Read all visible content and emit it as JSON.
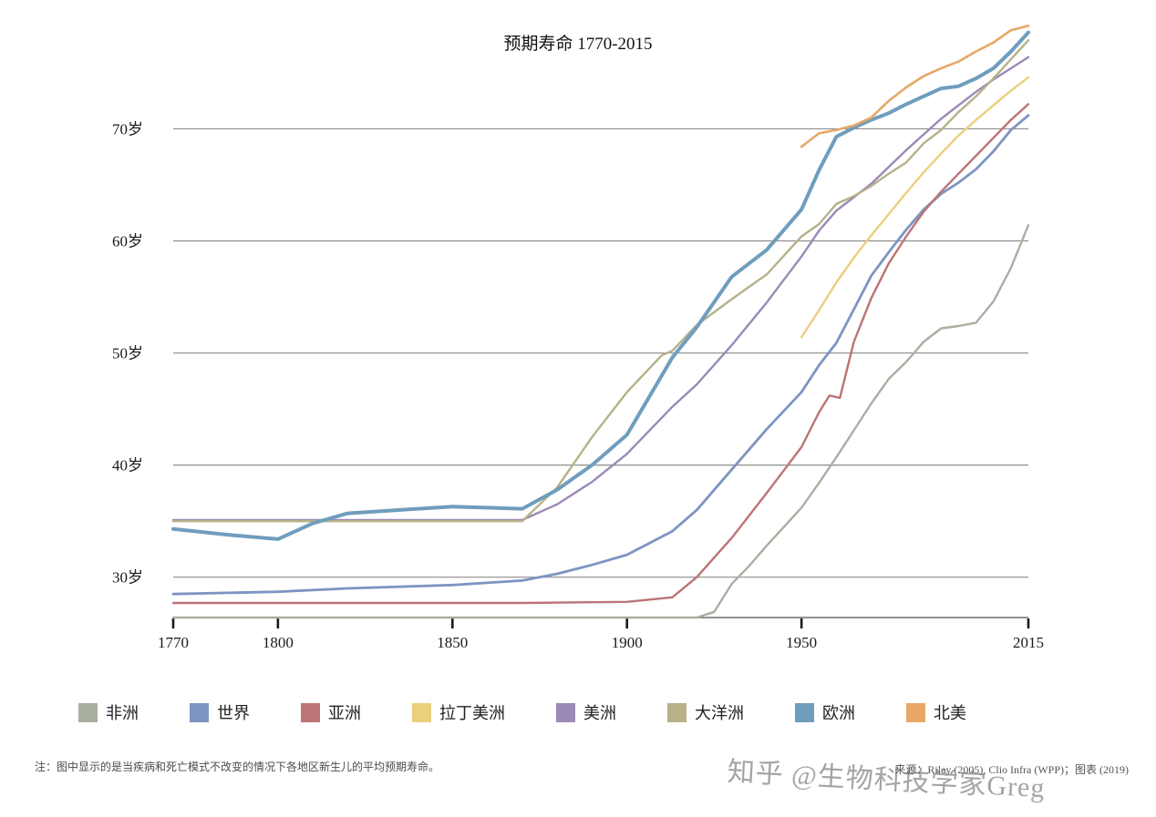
{
  "title": "预期寿命 1770-2015",
  "footnote": "注：图中显示的是当疾病和死亡模式不改变的情况下各地区新生儿的平均预期寿命。",
  "source": "来源：Riley (2005), Clio Infra (WPP)；图表 (2019)",
  "watermark": "知乎 @生物科技学家Greg",
  "chart_data": {
    "type": "line",
    "title": "预期寿命 1770-2015",
    "xlabel": "",
    "ylabel": "岁",
    "xlim": [
      1770,
      2015
    ],
    "ylim": [
      26.4,
      79.3
    ],
    "grid": "horizontal",
    "legend_position": "bottom",
    "xticks": [
      1770,
      1800,
      1850,
      1900,
      1950,
      2015
    ],
    "yticks": [
      {
        "value": 30,
        "label": "30岁"
      },
      {
        "value": 40,
        "label": "40岁"
      },
      {
        "value": 50,
        "label": "50岁"
      },
      {
        "value": 60,
        "label": "60岁"
      },
      {
        "value": 70,
        "label": "70岁"
      }
    ],
    "series": [
      {
        "key": "africa",
        "name": "非洲",
        "color": "#a7b0a0",
        "width": 2.4,
        "points": [
          [
            1770,
            26.4
          ],
          [
            1800,
            26.4
          ],
          [
            1850,
            26.4
          ],
          [
            1870,
            26.4
          ],
          [
            1900,
            26.4
          ],
          [
            1913,
            26.4
          ],
          [
            1920,
            26.4
          ],
          [
            1925,
            26.9
          ],
          [
            1930,
            29.4
          ],
          [
            1935,
            31.0
          ],
          [
            1940,
            32.8
          ],
          [
            1945,
            34.5
          ],
          [
            1950,
            36.2
          ],
          [
            1955,
            38.4
          ],
          [
            1960,
            40.7
          ],
          [
            1965,
            43.1
          ],
          [
            1970,
            45.5
          ],
          [
            1975,
            47.7
          ],
          [
            1980,
            49.2
          ],
          [
            1985,
            51.0
          ],
          [
            1990,
            52.2
          ],
          [
            1995,
            52.4
          ],
          [
            2000,
            52.7
          ],
          [
            2005,
            54.6
          ],
          [
            2010,
            57.6
          ],
          [
            2015,
            61.4
          ]
        ]
      },
      {
        "key": "world",
        "name": "世界",
        "color": "#7d95c1",
        "width": 2.8,
        "points": [
          [
            1770,
            28.5
          ],
          [
            1800,
            28.7
          ],
          [
            1820,
            29.0
          ],
          [
            1850,
            29.3
          ],
          [
            1870,
            29.7
          ],
          [
            1880,
            30.3
          ],
          [
            1890,
            31.1
          ],
          [
            1900,
            32.0
          ],
          [
            1913,
            34.1
          ],
          [
            1920,
            36.0
          ],
          [
            1930,
            39.6
          ],
          [
            1940,
            43.2
          ],
          [
            1950,
            46.5
          ],
          [
            1955,
            48.9
          ],
          [
            1960,
            50.9
          ],
          [
            1965,
            53.9
          ],
          [
            1970,
            56.9
          ],
          [
            1975,
            59.0
          ],
          [
            1980,
            61.0
          ],
          [
            1985,
            62.8
          ],
          [
            1990,
            64.2
          ],
          [
            1995,
            65.2
          ],
          [
            2000,
            66.4
          ],
          [
            2005,
            68.0
          ],
          [
            2010,
            69.9
          ],
          [
            2015,
            71.2
          ]
        ]
      },
      {
        "key": "asia",
        "name": "亚洲",
        "color": "#bc7476",
        "width": 2.4,
        "points": [
          [
            1770,
            27.7
          ],
          [
            1800,
            27.7
          ],
          [
            1850,
            27.7
          ],
          [
            1870,
            27.7
          ],
          [
            1900,
            27.8
          ],
          [
            1913,
            28.2
          ],
          [
            1920,
            30.0
          ],
          [
            1930,
            33.5
          ],
          [
            1940,
            37.5
          ],
          [
            1950,
            41.6
          ],
          [
            1955,
            44.7
          ],
          [
            1958,
            46.2
          ],
          [
            1961,
            46.0
          ],
          [
            1965,
            51.0
          ],
          [
            1970,
            54.9
          ],
          [
            1975,
            58.0
          ],
          [
            1980,
            60.4
          ],
          [
            1985,
            62.6
          ],
          [
            1990,
            64.4
          ],
          [
            1995,
            66.0
          ],
          [
            2000,
            67.6
          ],
          [
            2005,
            69.2
          ],
          [
            2010,
            70.8
          ],
          [
            2015,
            72.2
          ]
        ]
      },
      {
        "key": "latin-america",
        "name": "拉丁美洲",
        "color": "#ebcf7d",
        "width": 2.4,
        "points": [
          [
            1950,
            51.4
          ],
          [
            1955,
            53.8
          ],
          [
            1960,
            56.3
          ],
          [
            1965,
            58.5
          ],
          [
            1970,
            60.5
          ],
          [
            1975,
            62.4
          ],
          [
            1980,
            64.3
          ],
          [
            1985,
            66.1
          ],
          [
            1990,
            67.8
          ],
          [
            1995,
            69.4
          ],
          [
            2000,
            70.8
          ],
          [
            2005,
            72.1
          ],
          [
            2010,
            73.4
          ],
          [
            2015,
            74.6
          ]
        ]
      },
      {
        "key": "americas",
        "name": "美洲",
        "color": "#9b89b6",
        "width": 2.4,
        "points": [
          [
            1770,
            35.1
          ],
          [
            1800,
            35.1
          ],
          [
            1850,
            35.1
          ],
          [
            1870,
            35.1
          ],
          [
            1880,
            36.5
          ],
          [
            1890,
            38.5
          ],
          [
            1900,
            41.0
          ],
          [
            1913,
            45.2
          ],
          [
            1920,
            47.2
          ],
          [
            1930,
            50.7
          ],
          [
            1940,
            54.5
          ],
          [
            1950,
            58.6
          ],
          [
            1955,
            60.9
          ],
          [
            1960,
            62.7
          ],
          [
            1965,
            63.9
          ],
          [
            1970,
            65.1
          ],
          [
            1975,
            66.6
          ],
          [
            1980,
            68.1
          ],
          [
            1985,
            69.5
          ],
          [
            1990,
            70.9
          ],
          [
            1995,
            72.1
          ],
          [
            2000,
            73.3
          ],
          [
            2005,
            74.4
          ],
          [
            2010,
            75.4
          ],
          [
            2015,
            76.4
          ]
        ]
      },
      {
        "key": "oceania",
        "name": "大洋洲",
        "color": "#b7b189",
        "width": 2.4,
        "points": [
          [
            1770,
            35.0
          ],
          [
            1800,
            35.0
          ],
          [
            1850,
            35.0
          ],
          [
            1870,
            35.0
          ],
          [
            1880,
            38.0
          ],
          [
            1890,
            42.5
          ],
          [
            1900,
            46.5
          ],
          [
            1910,
            49.8
          ],
          [
            1913,
            50.2
          ],
          [
            1920,
            52.5
          ],
          [
            1930,
            54.8
          ],
          [
            1940,
            57.0
          ],
          [
            1950,
            60.4
          ],
          [
            1955,
            61.5
          ],
          [
            1960,
            63.3
          ],
          [
            1965,
            64.0
          ],
          [
            1970,
            64.9
          ],
          [
            1975,
            66.0
          ],
          [
            1980,
            67.0
          ],
          [
            1985,
            68.7
          ],
          [
            1990,
            69.9
          ],
          [
            1995,
            71.5
          ],
          [
            2000,
            72.9
          ],
          [
            2005,
            74.5
          ],
          [
            2010,
            76.2
          ],
          [
            2015,
            77.9
          ]
        ]
      },
      {
        "key": "europe",
        "name": "欧洲",
        "color": "#6f9dbd",
        "width": 4,
        "points": [
          [
            1770,
            34.3
          ],
          [
            1785,
            33.8
          ],
          [
            1800,
            33.4
          ],
          [
            1810,
            34.8
          ],
          [
            1820,
            35.7
          ],
          [
            1830,
            35.9
          ],
          [
            1840,
            36.1
          ],
          [
            1850,
            36.3
          ],
          [
            1860,
            36.2
          ],
          [
            1870,
            36.1
          ],
          [
            1880,
            37.8
          ],
          [
            1890,
            40.0
          ],
          [
            1900,
            42.7
          ],
          [
            1913,
            49.6
          ],
          [
            1920,
            52.3
          ],
          [
            1930,
            56.8
          ],
          [
            1940,
            59.2
          ],
          [
            1950,
            62.8
          ],
          [
            1955,
            66.3
          ],
          [
            1960,
            69.3
          ],
          [
            1965,
            70.1
          ],
          [
            1970,
            70.8
          ],
          [
            1975,
            71.4
          ],
          [
            1980,
            72.2
          ],
          [
            1985,
            72.9
          ],
          [
            1990,
            73.6
          ],
          [
            1995,
            73.8
          ],
          [
            2000,
            74.5
          ],
          [
            2005,
            75.4
          ],
          [
            2010,
            76.9
          ],
          [
            2015,
            78.6
          ]
        ]
      },
      {
        "key": "north-america",
        "name": "北美",
        "color": "#e7a767",
        "width": 2.6,
        "points": [
          [
            1950,
            68.4
          ],
          [
            1955,
            69.6
          ],
          [
            1960,
            69.9
          ],
          [
            1965,
            70.3
          ],
          [
            1970,
            71.0
          ],
          [
            1975,
            72.5
          ],
          [
            1980,
            73.7
          ],
          [
            1985,
            74.7
          ],
          [
            1990,
            75.4
          ],
          [
            1995,
            76.0
          ],
          [
            2000,
            76.9
          ],
          [
            2005,
            77.7
          ],
          [
            2010,
            78.8
          ],
          [
            2015,
            79.2
          ]
        ]
      }
    ]
  }
}
